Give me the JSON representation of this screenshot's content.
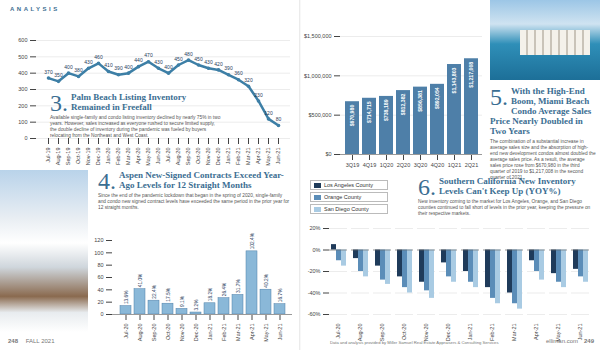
{
  "page": {
    "header": "ANALYSIS",
    "footer_left_page": "248",
    "footer_left_issue": "FALL 2021",
    "footer_source": "Data and analysis provided by Miller Samuel Real Estate Appraisers & Consulting Services",
    "footer_right_site": "elliman.com",
    "footer_right_page": "249"
  },
  "chart_data": [
    {
      "type": "line",
      "number": "3.",
      "title": "Palm Beach Listing Inventory Remained in Freefall",
      "body": "Available single-family and condo listing inventory declined by nearly 75% in two years. However, sales increased as everyone rushed to secure limited supply, the double decline of inventory during the pandemic was fueled by buyers relocating from the Northeast and West Coast.",
      "categories": [
        "Jul-19",
        "Aug-19",
        "Sep-19",
        "Oct-19",
        "Nov-19",
        "Dec-19",
        "Jan-20",
        "Feb-20",
        "Mar-20",
        "Apr-20",
        "May-20",
        "Jun-20",
        "Jul-20",
        "Aug-20",
        "Sep-20",
        "Oct-20",
        "Nov-20",
        "Dec-20",
        "Jan-21",
        "Feb-21",
        "Mar-21",
        "Apr-21",
        "May-21",
        "Jun-21"
      ],
      "values": [
        370,
        350,
        400,
        380,
        430,
        460,
        410,
        390,
        400,
        440,
        470,
        430,
        400,
        450,
        480,
        450,
        430,
        420,
        390,
        360,
        320,
        230,
        120,
        80
      ],
      "color": "#3d7fa6",
      "marker": "circle",
      "data_labels": true,
      "ylim": [
        0,
        600
      ],
      "yticks": [
        0,
        100,
        200,
        300,
        400,
        500,
        600
      ],
      "grid": true
    },
    {
      "type": "bar",
      "number": "4.",
      "title": "Aspen New-Signed Contracts Exceed Year-Ago Levels for 12 Straight Months",
      "body": "Since the end of the pandemic lockdown that began in the spring of 2020, single-family and condo new signed contract levels have exceeded the same period in the prior year for 12 straight months.",
      "categories": [
        "Jul-20",
        "Aug-20",
        "Sep-20",
        "Oct-20",
        "Nov-20",
        "Dec-20",
        "Jan-21",
        "Feb-21",
        "Mar-21",
        "Apr-21",
        "May-21",
        "Jun-21"
      ],
      "values": [
        13.6,
        41.0,
        22.4,
        17.5,
        9.1,
        3.2,
        18.2,
        26.4,
        31.7,
        102.4,
        40.2,
        16.7
      ],
      "value_labels": [
        "13.6%",
        "41.0%",
        "22.4%",
        "17.5%",
        "9.1%",
        "3.2%",
        "18.2%",
        "26.4%",
        "31.7%",
        "102.4%",
        "40.2%",
        "16.7%"
      ],
      "data_labels": true,
      "color": "#8ab8d8",
      "ylim": [
        0,
        120
      ],
      "yticks": [
        0,
        20,
        40,
        60,
        80,
        100,
        120
      ],
      "grid": false
    },
    {
      "type": "bar",
      "number": "5.",
      "title": "With the High-End Boom, Miami Beach Condo Average Sales Price Nearly Doubled in Two Years",
      "body": "The combination of a substantial increase in average sales size and the absorption of high-end new development condos almost doubled the average sales price. As a result, the average sales price rose from $670,980 in the third quarter of 2019 to $1,217,008 in the second quarter of 2021.",
      "categories": [
        "3Q19",
        "4Q19",
        "1Q20",
        "2Q20",
        "3Q20",
        "4Q20",
        "1Q21",
        "2Q21"
      ],
      "values": [
        670980,
        714715,
        738189,
        812382,
        856381,
        892054,
        1143803,
        1217008
      ],
      "value_labels": [
        "$670,980",
        "$714,715",
        "$738,189",
        "$812,382",
        "$856,381",
        "$892,054",
        "$1,143,803",
        "$1,217,008"
      ],
      "data_labels": true,
      "color": "#4e7fa8",
      "ylim": [
        0,
        1500000
      ],
      "yticks": [
        {
          "value": 0,
          "label": "$0"
        },
        {
          "value": 500000,
          "label": "$500,000"
        },
        {
          "value": 1000000,
          "label": "$1,000,000"
        },
        {
          "value": 1500000,
          "label": "$1,500,000"
        }
      ],
      "grid": true
    },
    {
      "type": "bar",
      "number": "6.",
      "title": "Southern California New Inventory Levels Can't Keep Up (YOY%)",
      "body": "New inventory coming to the market for Los Angeles, Orange, and San Diego counties continued to fall short of levels in the prior year, keeping the pressure on their respective markets.",
      "categories": [
        "Jul-20",
        "Aug-20",
        "Sep-20",
        "Oct-20",
        "Nov-20",
        "Dec-20",
        "Jan-21",
        "Feb-21",
        "Mar-21",
        "Apr-21",
        "May-21",
        "Jun-21"
      ],
      "series": [
        {
          "name": "Los Angeles County",
          "color": "#1f3b5a",
          "values": [
            5,
            -8,
            -15,
            -25,
            -30,
            -12,
            -20,
            -35,
            -40,
            -10,
            -22,
            -18
          ]
        },
        {
          "name": "Orange County",
          "color": "#5b8db8",
          "values": [
            -10,
            -20,
            -28,
            -35,
            -38,
            -25,
            -30,
            -45,
            -50,
            -20,
            -30,
            -25
          ]
        },
        {
          "name": "San Diego County",
          "color": "#a9cbe3",
          "values": [
            -15,
            -25,
            -32,
            -40,
            -45,
            -30,
            -35,
            -50,
            -55,
            -28,
            -35,
            -30
          ]
        }
      ],
      "legend": "top-left",
      "ylim": [
        -60,
        20
      ],
      "yticks": [
        {
          "value": -60,
          "label": "-60%"
        },
        {
          "value": -40,
          "label": "-40%"
        },
        {
          "value": -20,
          "label": "-20%"
        },
        {
          "value": 0,
          "label": "0%"
        },
        {
          "value": 20,
          "label": "20%"
        }
      ],
      "grid": true
    }
  ]
}
